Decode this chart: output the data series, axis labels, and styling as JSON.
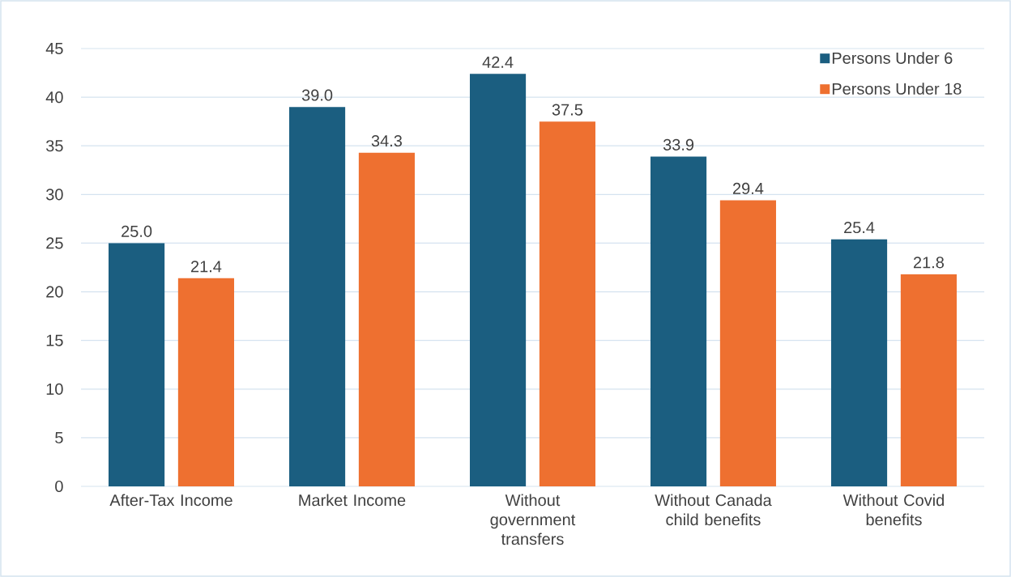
{
  "chart_data": {
    "type": "bar",
    "categories": [
      "After-Tax Income",
      "Market Income",
      "Without government transfers",
      "Without Canada child benefits",
      "Without Covid benefits"
    ],
    "series": [
      {
        "name": "Persons Under 6",
        "color": "#1b5e80",
        "values": [
          25.0,
          39.0,
          42.4,
          33.9,
          25.4
        ],
        "value_labels": [
          "25.0",
          "39.0",
          "42.4",
          "33.9",
          "25.4"
        ]
      },
      {
        "name": "Persons Under 18",
        "color": "#ee7030",
        "values": [
          21.4,
          34.3,
          37.5,
          29.4,
          21.8
        ],
        "value_labels": [
          "21.4",
          "34.3",
          "37.5",
          "29.4",
          "21.8"
        ]
      }
    ],
    "ylim": [
      0,
      45
    ],
    "yticks": [
      0,
      5,
      10,
      15,
      20,
      25,
      30,
      35,
      40,
      45
    ],
    "grid": "y",
    "legend": "top right"
  }
}
